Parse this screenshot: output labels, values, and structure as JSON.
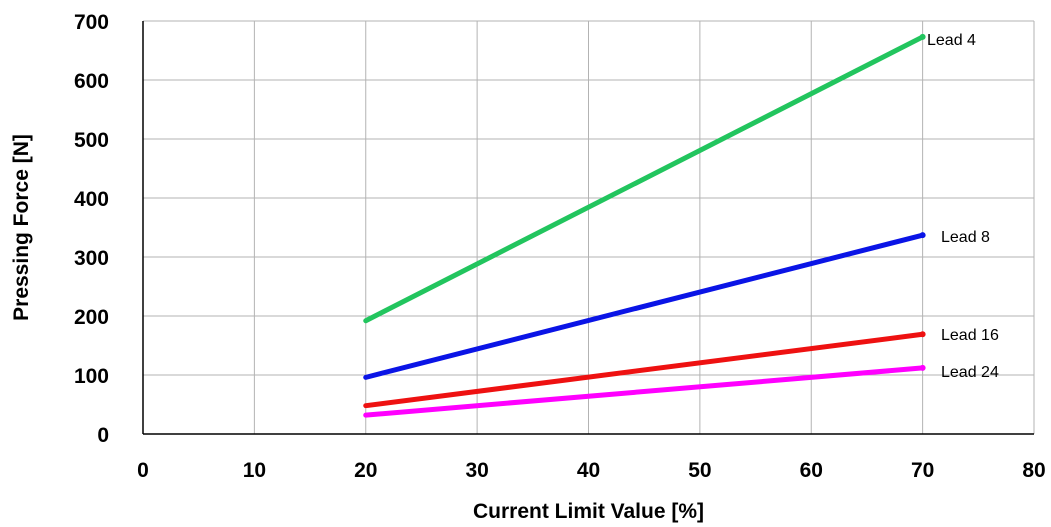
{
  "chart_data": {
    "type": "line",
    "title": "",
    "xlabel": "Current Limit Value [%]",
    "ylabel": "Pressing Force [N]",
    "xlim": [
      0,
      80
    ],
    "ylim": [
      0,
      700
    ],
    "xticks": [
      "0",
      "10",
      "20",
      "30",
      "40",
      "50",
      "60",
      "70",
      "80"
    ],
    "yticks": [
      "0",
      "100",
      "200",
      "300",
      "400",
      "500",
      "600",
      "700"
    ],
    "grid": true,
    "legend": "labels at line ends",
    "series": [
      {
        "name": "Lead 4",
        "color": "#22c55e",
        "x": [
          20,
          70
        ],
        "y": [
          192,
          673
        ]
      },
      {
        "name": "Lead 8",
        "color": "#0a14e6",
        "x": [
          20,
          70
        ],
        "y": [
          96,
          337
        ]
      },
      {
        "name": "Lead 16",
        "color": "#ee1111",
        "x": [
          20,
          70
        ],
        "y": [
          48,
          169
        ]
      },
      {
        "name": "Lead 24",
        "color": "#ff00ff",
        "x": [
          20,
          70
        ],
        "y": [
          32,
          112
        ]
      }
    ]
  }
}
